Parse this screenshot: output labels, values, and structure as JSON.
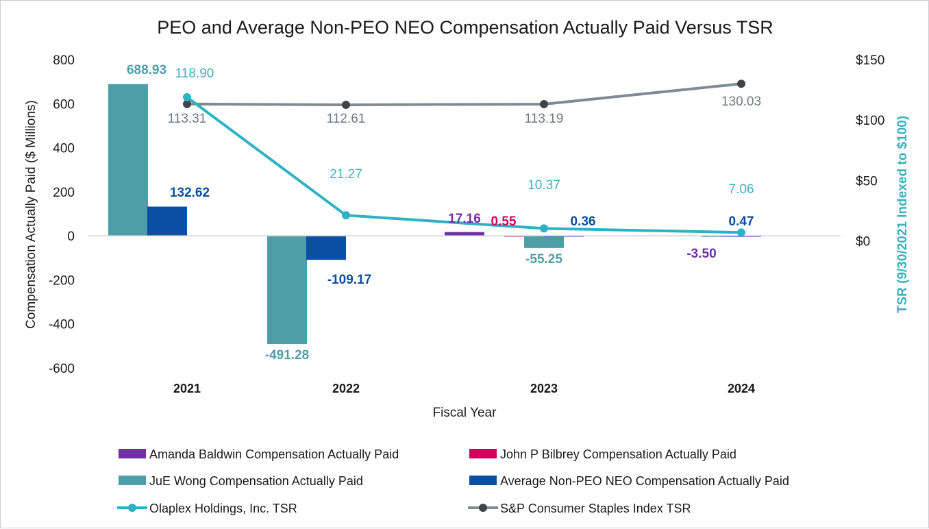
{
  "chart_data": {
    "type": "bar",
    "title": "PEO and Average Non-PEO NEO Compensation Actually Paid Versus TSR",
    "xlabel": "Fiscal Year",
    "ylabel": "Compensation Actually Paid ($ Millions)",
    "y2label": "TSR (9/30/2021 Indexed to $100)",
    "categories": [
      "2021",
      "2022",
      "2023",
      "2024"
    ],
    "ylim": [
      -600,
      800
    ],
    "yticks": [
      "800",
      "600",
      "400",
      "200",
      "0",
      "-200",
      "-400",
      "-600"
    ],
    "y2lim": [
      -105,
      150
    ],
    "y2ticks": [
      {
        "value": 150,
        "label": "$150"
      },
      {
        "value": 100,
        "label": "$100"
      },
      {
        "value": 50,
        "label": "$50"
      },
      {
        "value": 0,
        "label": "$0"
      }
    ],
    "bar_series": [
      {
        "name": "Amanda Baldwin  Compensation Actually Paid",
        "color": "#7030a0",
        "label_color": "#7030a0",
        "values": [
          null,
          null,
          17.16,
          -3.5
        ],
        "labels": [
          "",
          "",
          "17.16",
          "-3.50"
        ]
      },
      {
        "name": "John P Bilbrey Compensation Actually Paid",
        "color": "#d4005f",
        "label_color": "#d4005f",
        "values": [
          null,
          null,
          0.55,
          null
        ],
        "labels": [
          "",
          "",
          "0.55",
          ""
        ]
      },
      {
        "name": "JuE Wong Compensation Actually Paid",
        "color": "#4e9ea8",
        "label_color": "#4e9ea8",
        "values": [
          688.93,
          -491.28,
          -55.25,
          null
        ],
        "labels": [
          "688.93",
          "-491.28",
          "-55.25",
          ""
        ]
      },
      {
        "name": "Average Non-PEO NEO Compensation Actually Paid",
        "color": "#0b4fa3",
        "label_color": "#0b4fa3",
        "values": [
          132.62,
          -109.17,
          0.36,
          0.47
        ],
        "labels": [
          "132.62",
          "-109.17",
          "0.36",
          "0.47"
        ]
      }
    ],
    "line_series": [
      {
        "name": "Olaplex Holdings, Inc. TSR",
        "color": "#2bb3c3",
        "label_color": "#3bb0bd",
        "values": [
          118.9,
          21.27,
          10.37,
          7.06
        ],
        "labels": [
          "118.90",
          "21.27",
          "10.37",
          "7.06"
        ]
      },
      {
        "name": "S&P Consumer Staples Index TSR",
        "color": "#7f8b93",
        "label_color": "#6d7880",
        "values": [
          113.31,
          112.61,
          113.19,
          130.03
        ],
        "labels": [
          "113.31",
          "112.61",
          "113.19",
          "130.03"
        ]
      }
    ],
    "legend_position": "bottom",
    "grid": false
  }
}
